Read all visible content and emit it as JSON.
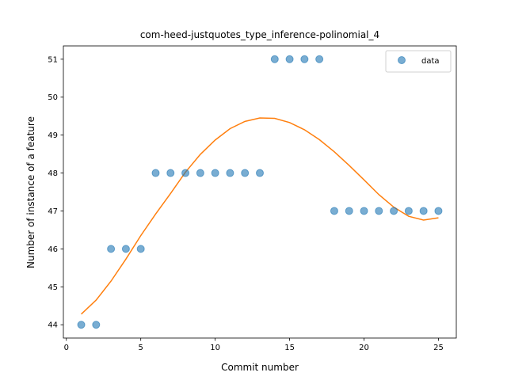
{
  "chart_data": {
    "type": "scatter",
    "title": "com-heed-justquotes_type_inference-polinomial_4",
    "xlabel": "Commit number",
    "ylabel": "Number of instance of a feature",
    "xlim": [
      -0.2,
      26.2
    ],
    "ylim": [
      43.65,
      51.35
    ],
    "xticks": [
      0,
      5,
      10,
      15,
      20,
      25
    ],
    "yticks": [
      44,
      45,
      46,
      47,
      48,
      49,
      50,
      51
    ],
    "legend": "top-right",
    "grid": false,
    "series": [
      {
        "name": "data",
        "kind": "scatter",
        "color": "#1f77b4",
        "x": [
          1,
          2,
          3,
          4,
          5,
          6,
          7,
          8,
          9,
          10,
          11,
          12,
          13,
          14,
          15,
          16,
          17,
          18,
          19,
          20,
          21,
          22,
          23,
          24,
          25
        ],
        "y": [
          44,
          44,
          46,
          46,
          46,
          48,
          48,
          48,
          48,
          48,
          48,
          48,
          48,
          51,
          51,
          51,
          51,
          47,
          47,
          47,
          47,
          47,
          47,
          47,
          47
        ]
      },
      {
        "kind": "line",
        "color": "#ff7f0e",
        "x": [
          1,
          2,
          3,
          4,
          5,
          6,
          7,
          8,
          9,
          10,
          11,
          12,
          13,
          14,
          15,
          16,
          17,
          18,
          19,
          20,
          21,
          22,
          23,
          24,
          25
        ],
        "y": [
          44.28,
          44.65,
          45.15,
          45.73,
          46.35,
          46.92,
          47.46,
          48.02,
          48.49,
          48.87,
          49.17,
          49.36,
          49.45,
          49.44,
          49.33,
          49.14,
          48.88,
          48.56,
          48.2,
          47.82,
          47.43,
          47.1,
          46.86,
          46.76,
          46.82
        ]
      }
    ]
  }
}
